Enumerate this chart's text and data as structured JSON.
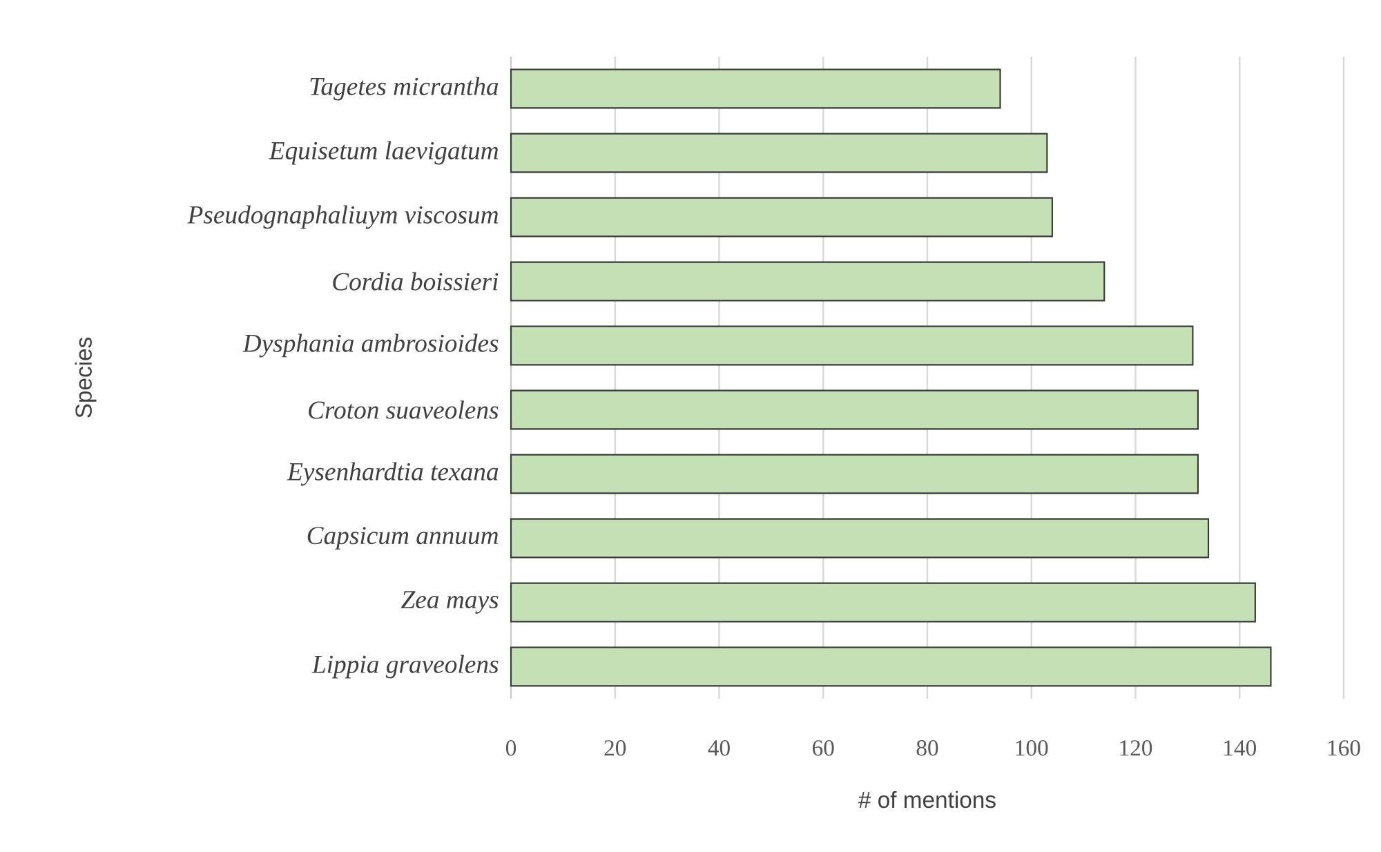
{
  "chart_data": {
    "type": "bar",
    "orientation": "horizontal",
    "xlabel": "# of mentions",
    "ylabel": "Species",
    "categories": [
      "Tagetes micrantha",
      "Equisetum laevigatum",
      "Pseudognaphaliuym viscosum",
      "Cordia boissieri",
      "Dysphania ambrosioides",
      "Croton suaveolens",
      "Eysenhardtia texana",
      "Capsicum annuum",
      "Zea mays",
      "Lippia graveolens"
    ],
    "values": [
      94,
      103,
      104,
      114,
      131,
      132,
      132,
      134,
      143,
      146
    ],
    "color": "#c5e0b4",
    "xlim": [
      0,
      160
    ],
    "xticks": [
      0,
      20,
      40,
      60,
      80,
      100,
      120,
      140,
      160
    ],
    "grid": "x"
  }
}
